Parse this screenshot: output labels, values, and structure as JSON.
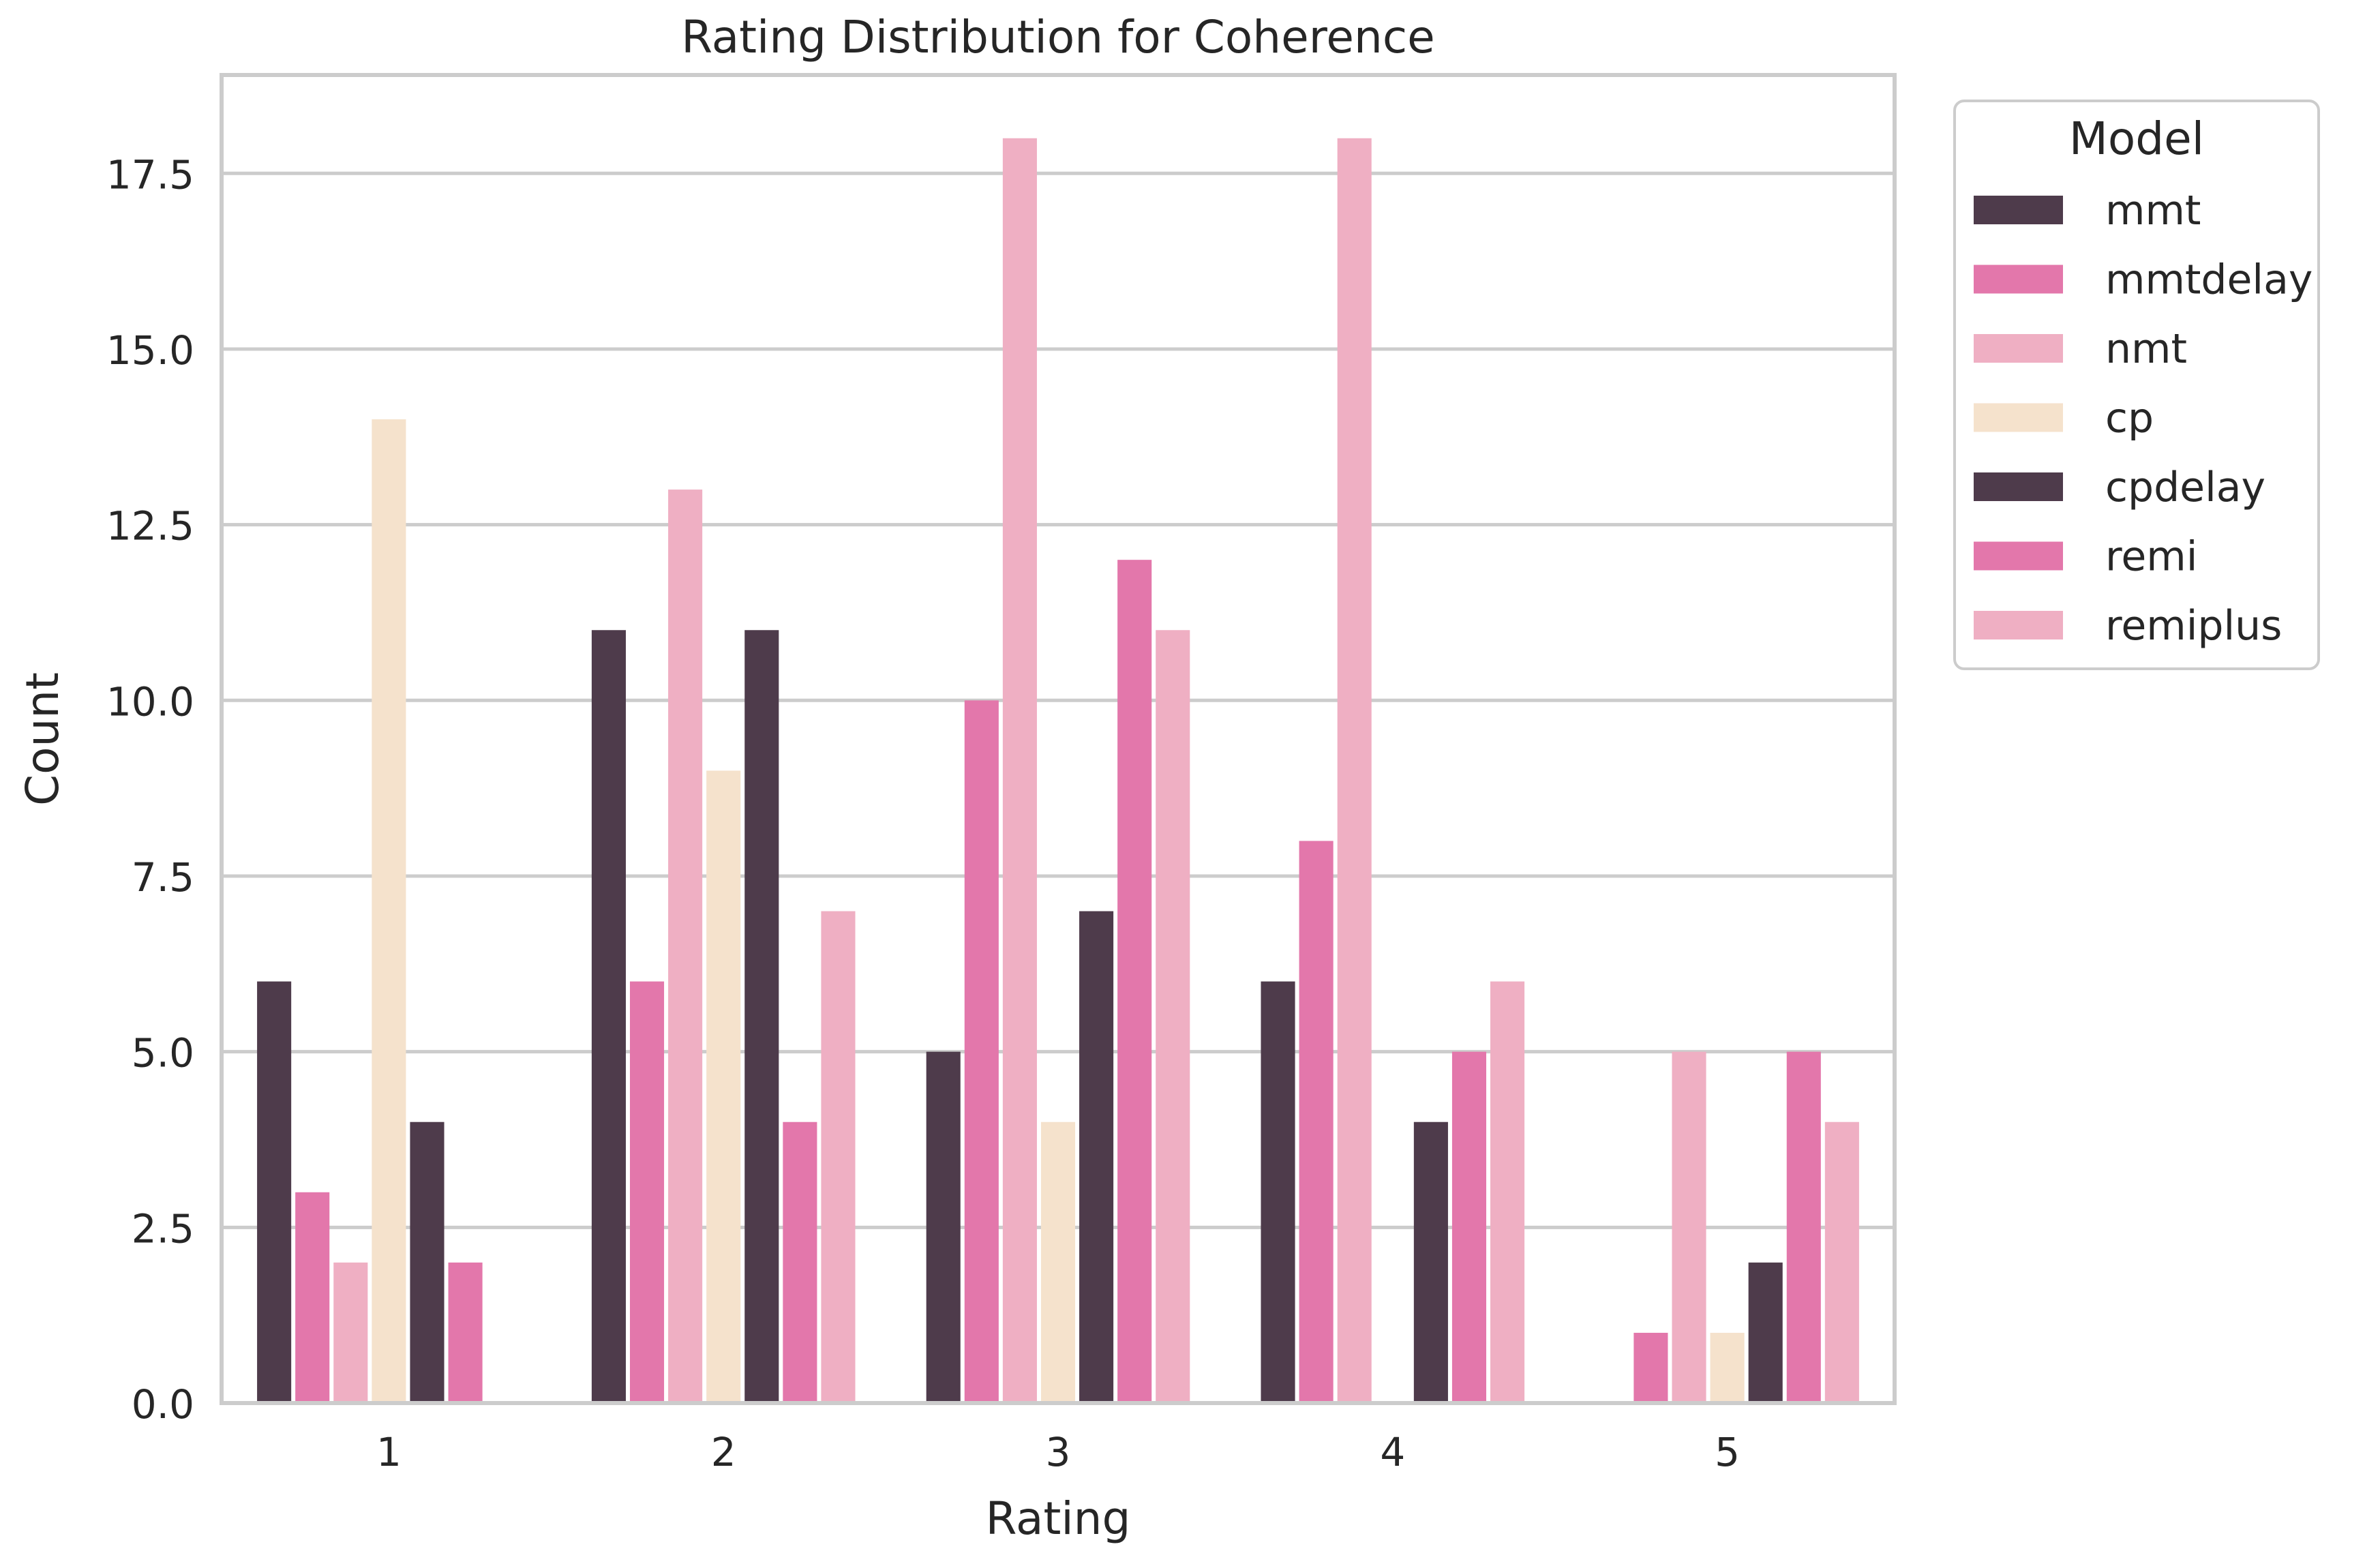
{
  "chart_data": {
    "type": "bar",
    "title": "Rating Distribution for Coherence",
    "xlabel": "Rating",
    "ylabel": "Count",
    "categories": [
      "1",
      "2",
      "3",
      "4",
      "5"
    ],
    "ylim": [
      0,
      18.9
    ],
    "yticks": [
      0,
      2.5,
      5,
      7.5,
      10,
      12.5,
      15,
      17.5
    ],
    "ytick_labels": [
      "0.0",
      "2.5",
      "5.0",
      "7.5",
      "10.0",
      "12.5",
      "15.0",
      "17.5"
    ],
    "grid": "horizontal",
    "legend": {
      "title": "Model",
      "placement": "right, outside plot, top"
    },
    "series": [
      {
        "name": "mmt",
        "color": "#4e3b4b",
        "values": [
          6,
          11,
          5,
          6,
          0
        ]
      },
      {
        "name": "mmtdelay",
        "color": "#e377ab",
        "values": [
          3,
          6,
          10,
          8,
          1
        ]
      },
      {
        "name": "nmt",
        "color": "#efafc3",
        "values": [
          2,
          13,
          18,
          18,
          5
        ]
      },
      {
        "name": "cp",
        "color": "#f5e2cc",
        "values": [
          14,
          9,
          4,
          0,
          1
        ]
      },
      {
        "name": "cpdelay",
        "color": "#4e3b4b",
        "values": [
          4,
          11,
          7,
          4,
          2
        ]
      },
      {
        "name": "remi",
        "color": "#e377ab",
        "values": [
          2,
          4,
          12,
          5,
          5
        ]
      },
      {
        "name": "remiplus",
        "color": "#efafc3",
        "values": [
          0,
          7,
          11,
          6,
          4
        ]
      }
    ]
  }
}
